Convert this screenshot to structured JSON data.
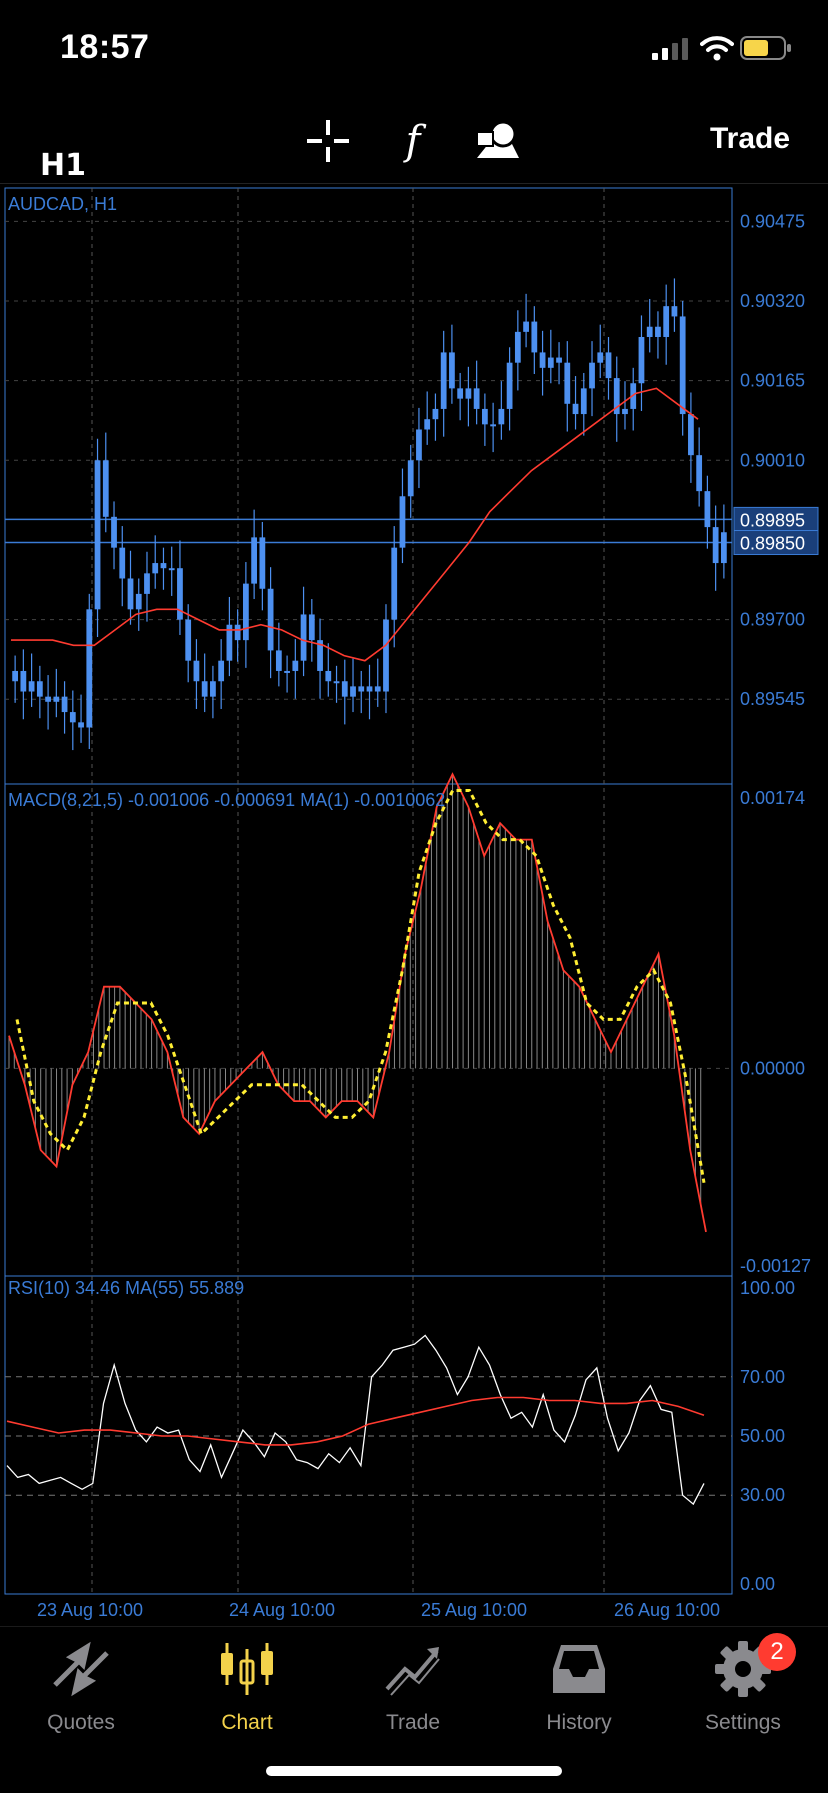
{
  "status_bar": {
    "time": "18:57"
  },
  "header": {
    "timeframe": "H1",
    "icons": [
      "crosshair-icon",
      "function-icon",
      "objects-icon"
    ],
    "trade_label": "Trade"
  },
  "chart_data": [
    {
      "type": "candlestick",
      "title": "AUDCAD, H1",
      "yticks": [
        "0.90475",
        "0.90320",
        "0.90165",
        "0.90010",
        "0.89700",
        "0.89545"
      ],
      "ylim": [
        0.8938,
        0.9054
      ],
      "price_lines": [
        {
          "label": "0.89895",
          "value": 0.89895
        },
        {
          "label": "0.89850",
          "value": 0.8985
        }
      ],
      "close": [
        0.896,
        0.8956,
        0.8958,
        0.8955,
        0.8954,
        0.8955,
        0.8952,
        0.895,
        0.8949,
        0.8972,
        0.9001,
        0.899,
        0.8984,
        0.8978,
        0.8972,
        0.8975,
        0.8979,
        0.8981,
        0.898,
        0.898,
        0.897,
        0.8962,
        0.8958,
        0.8955,
        0.8958,
        0.8962,
        0.8969,
        0.8966,
        0.8977,
        0.8986,
        0.8976,
        0.8964,
        0.896,
        0.896,
        0.8962,
        0.8971,
        0.8966,
        0.896,
        0.8958,
        0.8958,
        0.8955,
        0.8957,
        0.8956,
        0.8957,
        0.8956,
        0.897,
        0.8984,
        0.8994,
        0.9001,
        0.9007,
        0.9009,
        0.9011,
        0.9022,
        0.9015,
        0.9013,
        0.9015,
        0.9011,
        0.9008,
        0.9008,
        0.9011,
        0.902,
        0.9026,
        0.9028,
        0.9022,
        0.9019,
        0.9021,
        0.902,
        0.9012,
        0.901,
        0.9015,
        0.902,
        0.9022,
        0.9017,
        0.901,
        0.9011,
        0.9016,
        0.9025,
        0.9027,
        0.9025,
        0.9031,
        0.9029,
        0.901,
        0.9002,
        0.8995,
        0.8988,
        0.8981,
        0.8987
      ],
      "ma_line": [
        0.8966,
        0.8966,
        0.8966,
        0.8965,
        0.8965,
        0.8968,
        0.8971,
        0.8972,
        0.8972,
        0.897,
        0.8968,
        0.8968,
        0.8969,
        0.8968,
        0.8966,
        0.8965,
        0.8963,
        0.8962,
        0.8965,
        0.897,
        0.8975,
        0.898,
        0.8985,
        0.8991,
        0.8995,
        0.8999,
        0.9002,
        0.9005,
        0.9008,
        0.9011,
        0.9014,
        0.9015,
        0.9012,
        0.9009
      ],
      "xticks": [
        "23 Aug 10:00",
        "24 Aug 10:00",
        "25 Aug 10:00",
        "26 Aug 10:00"
      ]
    },
    {
      "type": "histogram+line",
      "title": "MACD(8,21,5) -0.001006 -0.000691 MA(1) -0.0010062",
      "yticks": [
        "0.00174",
        "0.00000",
        "-0.00127"
      ],
      "ylim": [
        -0.00127,
        0.00174
      ],
      "macd_line": [
        0.0002,
        -0.0001,
        -0.0005,
        -0.0006,
        -0.0001,
        0.0001,
        0.0005,
        0.0005,
        0.0004,
        0.0003,
        0.0001,
        -0.0003,
        -0.0004,
        -0.0002,
        -0.0001,
        0.0,
        0.0001,
        -0.0001,
        -0.0002,
        -0.0002,
        -0.0003,
        -0.0002,
        -0.0002,
        -0.0003,
        0.0001,
        0.0007,
        0.0011,
        0.0016,
        0.0018,
        0.0016,
        0.0013,
        0.0015,
        0.0014,
        0.0014,
        0.0009,
        0.0006,
        0.0005,
        0.0003,
        0.0001,
        0.0003,
        0.0005,
        0.0007,
        0.0002,
        -0.0005,
        -0.001
      ],
      "signal_line": [
        0.0003,
        -0.0002,
        -0.0004,
        -0.0005,
        -0.0003,
        0.0001,
        0.0004,
        0.0004,
        0.0004,
        0.0002,
        -0.0001,
        -0.0004,
        -0.0003,
        -0.0002,
        -0.0001,
        -0.0001,
        -0.0001,
        -0.0001,
        -0.0002,
        -0.0003,
        -0.0003,
        -0.0002,
        0.0001,
        0.0006,
        0.0012,
        0.0015,
        0.0017,
        0.0017,
        0.0015,
        0.0014,
        0.0014,
        0.0013,
        0.001,
        0.0008,
        0.0004,
        0.0003,
        0.0003,
        0.0005,
        0.0006,
        0.0004,
        -0.0001,
        -0.0007
      ]
    },
    {
      "type": "line",
      "title": "RSI(10) 34.46 MA(55) 55.889",
      "yticks": [
        "100.00",
        "70.00",
        "50.00",
        "30.00",
        "0.00"
      ],
      "ylim": [
        0,
        100
      ],
      "levels": [
        70,
        50,
        30
      ],
      "rsi_line": [
        40,
        36,
        37,
        34,
        35,
        36,
        34,
        32,
        34,
        61,
        74,
        61,
        52,
        48,
        53,
        51,
        52,
        42,
        38,
        47,
        36,
        44,
        52,
        48,
        43,
        51,
        48,
        42,
        41,
        39,
        44,
        41,
        46,
        40,
        70,
        74,
        79,
        80,
        81,
        84,
        79,
        73,
        64,
        70,
        80,
        74,
        64,
        56,
        58,
        53,
        64,
        52,
        48,
        57,
        69,
        73,
        56,
        45,
        51,
        62,
        67,
        59,
        58,
        30,
        27,
        34
      ],
      "ma_line": [
        55,
        53,
        51,
        52,
        52,
        51,
        50,
        50,
        49,
        48,
        47,
        47,
        48,
        50,
        54,
        56,
        58,
        60,
        62,
        63,
        63,
        62,
        62,
        61,
        61,
        62,
        60,
        57
      ]
    }
  ],
  "tabs": [
    {
      "label": "Quotes",
      "icon": "quotes-icon"
    },
    {
      "label": "Chart",
      "icon": "chart-icon",
      "active": true
    },
    {
      "label": "Trade",
      "icon": "trade-icon"
    },
    {
      "label": "History",
      "icon": "history-icon"
    },
    {
      "label": "Settings",
      "icon": "settings-icon",
      "badge": "2"
    }
  ],
  "colors": {
    "axis": "#3a7bd5",
    "candle": "#4d90f0",
    "ma": "#ff3b30",
    "signal": "#ffee33",
    "active_tab": "#f3d24b"
  }
}
